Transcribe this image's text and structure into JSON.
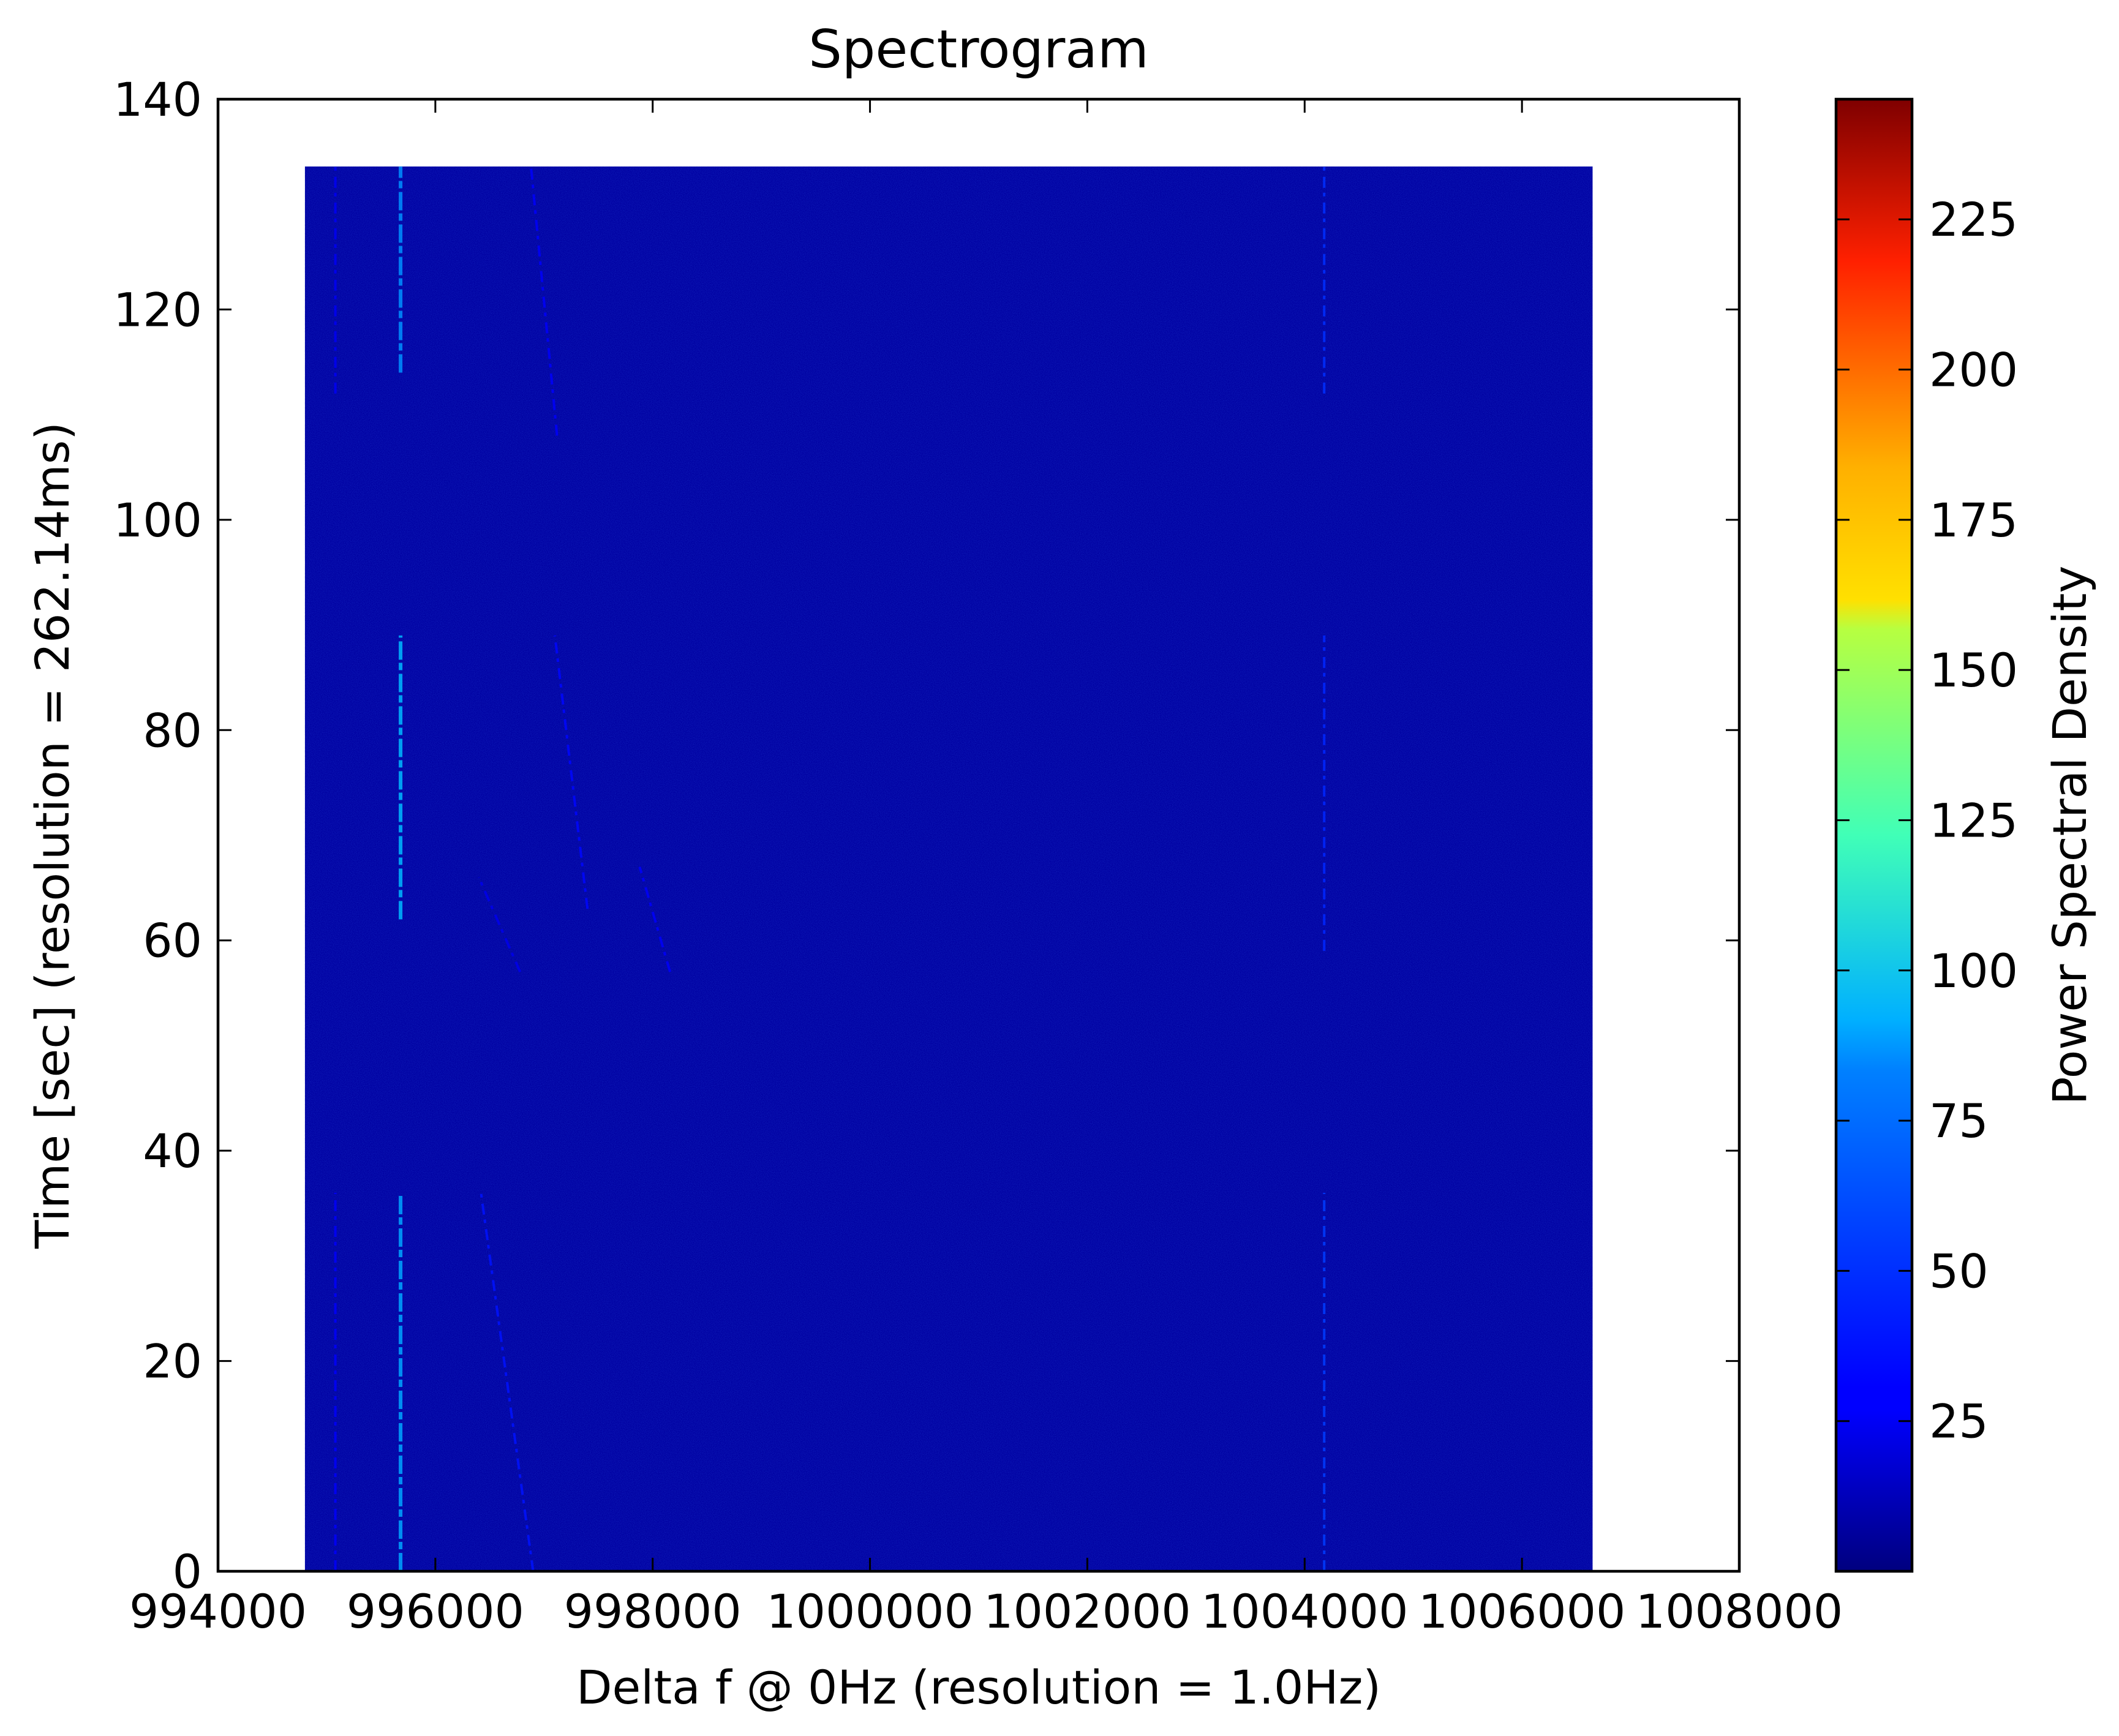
{
  "chart_data": {
    "type": "heatmap",
    "title": "Spectrogram",
    "xlabel": "Delta f @ 0Hz (resolution = 1.0Hz)",
    "ylabel": "Time [sec] (resolution = 262.14ms)",
    "xlim": [
      994000,
      1008000
    ],
    "ylim": [
      0,
      140
    ],
    "xticks": [
      994000,
      996000,
      998000,
      1000000,
      1002000,
      1004000,
      1006000,
      1008000
    ],
    "yticks": [
      0,
      20,
      40,
      60,
      80,
      100,
      120,
      140
    ],
    "data_extent": {
      "x": [
        994800,
        1006650
      ],
      "y": [
        0,
        133.6
      ]
    },
    "background_level": 8,
    "colormap": "jet",
    "colorbar": {
      "label": "Power Spectral Density",
      "range": [
        0,
        245
      ],
      "ticks": [
        25,
        50,
        75,
        100,
        125,
        150,
        175,
        200,
        225
      ]
    },
    "signals": [
      {
        "x": 995680,
        "y": [
          0,
          36
        ],
        "level": 70
      },
      {
        "x": 995680,
        "y": [
          62,
          89
        ],
        "level": 75
      },
      {
        "x": 995680,
        "y": [
          114,
          133.6
        ],
        "level": 65
      },
      {
        "x": 995080,
        "y": [
          0,
          36
        ],
        "level": 30
      },
      {
        "x": 995080,
        "y": [
          112,
          133.6
        ],
        "level": 28
      },
      {
        "x": 1004180,
        "y": [
          0,
          36
        ],
        "level": 45
      },
      {
        "x": 1004180,
        "y": [
          59,
          89
        ],
        "level": 40
      },
      {
        "x": 1004180,
        "y": [
          112,
          133.6
        ],
        "level": 42
      },
      {
        "x": [
          996900,
          996420
        ],
        "y": [
          0,
          36
        ],
        "level": 35
      },
      {
        "x": [
          997400,
          997100
        ],
        "y": [
          63,
          89
        ],
        "level": 32
      },
      {
        "x": [
          998160,
          997880
        ],
        "y": [
          57,
          67
        ],
        "level": 30
      },
      {
        "x": [
          996780,
          996400
        ],
        "y": [
          57,
          66
        ],
        "level": 26
      },
      {
        "x": [
          997120,
          996880
        ],
        "y": [
          108,
          133.6
        ],
        "level": 30
      }
    ]
  }
}
